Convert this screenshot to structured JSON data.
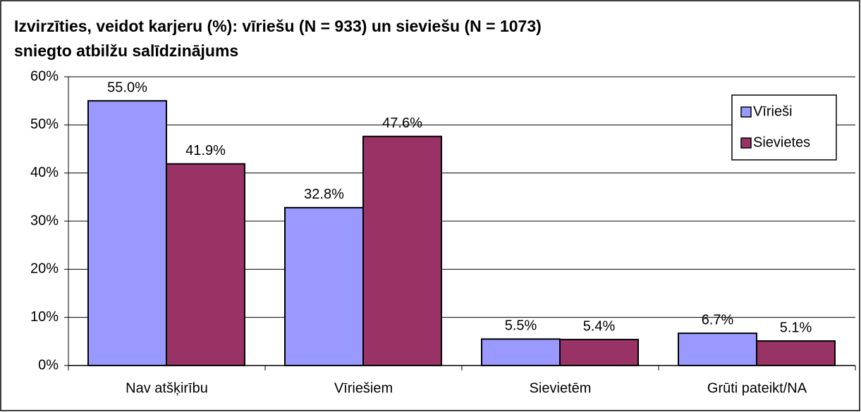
{
  "chart_data": {
    "type": "bar",
    "title": [
      "Izvirzīties, veidot karjeru (%): vīriešu (N = 933) un sieviešu (N = 1073)",
      "sniegto atbilžu salīdzinājums"
    ],
    "categories": [
      "Nav atšķirību",
      "Vīriešiem",
      "Sievietēm",
      "Grūti pateikt/NA"
    ],
    "series": [
      {
        "name": "Vīrieši",
        "color": "#9999ff",
        "values": [
          55.0,
          32.8,
          5.5,
          6.7
        ],
        "value_labels": [
          "55.0%",
          "32.8%",
          "5.5%",
          "6.7%"
        ]
      },
      {
        "name": "Sievietes",
        "color": "#993366",
        "values": [
          41.9,
          47.6,
          5.4,
          5.1
        ],
        "value_labels": [
          "41.9%",
          "47.6%",
          "5.4%",
          "5.1%"
        ]
      }
    ],
    "ylim": [
      0,
      60
    ],
    "yticks": [
      {
        "value": 0,
        "label": "0%"
      },
      {
        "value": 10,
        "label": "10%"
      },
      {
        "value": 20,
        "label": "20%"
      },
      {
        "value": 30,
        "label": "30%"
      },
      {
        "value": 40,
        "label": "40%"
      },
      {
        "value": 50,
        "label": "50%"
      },
      {
        "value": 60,
        "label": "60%"
      }
    ],
    "grid": true,
    "legend": "right"
  }
}
